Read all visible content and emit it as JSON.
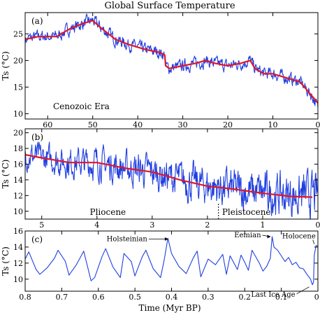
{
  "title": "Global Surface Temperature",
  "xlabel": "Time (Myr BP)",
  "colors": {
    "noisy": "#1f3fe0",
    "smooth": "#e0162b",
    "axis": "#000000"
  },
  "chart_data": [
    {
      "type": "line",
      "panel_label": "(a)",
      "era_label": "Cenozoic Era",
      "ylabel": "Ts (°C)",
      "xlim": [
        65,
        0
      ],
      "ylim": [
        9,
        29
      ],
      "xticks": [
        60,
        50,
        40,
        30,
        20,
        10,
        0
      ],
      "yticks": [
        10,
        15,
        20,
        25
      ],
      "series": [
        {
          "style": "noisy",
          "amp": 0.9,
          "x": [
            65,
            62,
            58,
            55,
            52,
            50,
            48,
            45,
            42,
            40,
            38,
            35,
            34,
            33.8,
            33,
            30,
            27,
            25,
            23,
            20,
            17,
            15,
            14,
            12,
            10,
            8,
            6,
            4,
            3,
            2,
            1,
            0
          ],
          "y": [
            24,
            24.5,
            24.5,
            26,
            27,
            27.5,
            26,
            24,
            23,
            22.5,
            22,
            21.5,
            21,
            19,
            18.5,
            19,
            19.5,
            20,
            19.5,
            19,
            19.5,
            20,
            18.5,
            17.5,
            17.5,
            17,
            16.5,
            16,
            15,
            14,
            13,
            11
          ]
        },
        {
          "style": "smooth",
          "x": [
            65,
            62,
            58,
            55,
            52,
            50,
            48,
            45,
            42,
            40,
            38,
            35,
            34,
            33.8,
            33,
            30,
            27,
            25,
            23,
            20,
            17,
            15,
            14,
            12,
            10,
            8,
            6,
            4,
            3,
            2,
            1,
            0
          ],
          "y": [
            24,
            24.5,
            24.5,
            26,
            27,
            27.5,
            26,
            24,
            23,
            22.5,
            22,
            21.5,
            21,
            19,
            18.5,
            19,
            19.5,
            20,
            19.5,
            19,
            19.5,
            20,
            18.5,
            17.5,
            17.5,
            17,
            16.5,
            16,
            15,
            14,
            13,
            12
          ]
        }
      ]
    },
    {
      "type": "line",
      "panel_label": "(b)",
      "ylabel": "Ts (°C)",
      "xlim": [
        5.3,
        0
      ],
      "ylim": [
        9,
        20.5
      ],
      "xticks": [
        5,
        4,
        3,
        2,
        1,
        0
      ],
      "yticks": [
        10,
        12,
        14,
        16,
        18,
        20
      ],
      "epochs": [
        "Pliocene",
        "Pleistocene"
      ],
      "epoch_boundary": 1.8,
      "series": [
        {
          "style": "noisy",
          "amp": 1.3,
          "ampgrow": 0.7,
          "x": [
            5.3,
            5,
            4.5,
            4,
            3.5,
            3,
            2.5,
            2,
            1.5,
            1,
            0.5,
            0
          ],
          "y": [
            17.2,
            16.8,
            16.2,
            16.2,
            15.5,
            15,
            14,
            13.2,
            12.8,
            12.3,
            12,
            12
          ]
        },
        {
          "style": "smooth",
          "x": [
            5.3,
            5,
            4.5,
            4,
            3.5,
            3,
            2.5,
            2,
            1.5,
            1,
            0.5,
            0.1
          ],
          "y": [
            17.2,
            16.8,
            16.2,
            16.2,
            15.5,
            15,
            14,
            13.2,
            12.8,
            12.3,
            11.9,
            11.8
          ]
        }
      ]
    },
    {
      "type": "line",
      "panel_label": "(c)",
      "ylabel": "Ts (°C)",
      "xlim": [
        0.8,
        0
      ],
      "ylim": [
        8.5,
        16
      ],
      "xticks": [
        0.8,
        0.7,
        0.6,
        0.5,
        0.4,
        0.3,
        0.2,
        0.1,
        0
      ],
      "xticklabels": [
        "0.8",
        "0.7",
        "0.6",
        "0.5",
        "0.4",
        "0.3",
        "0.2",
        "0.1",
        "0."
      ],
      "yticks": [
        10,
        12,
        14,
        16
      ],
      "annotations": [
        {
          "text": "Holsteinian",
          "x": 0.405,
          "y": 15.0
        },
        {
          "text": "Eemian",
          "x": 0.125,
          "y": 15.3
        },
        {
          "text": "Holocene",
          "x": 0.01,
          "y": 14.2
        },
        {
          "text": "Last Ice Age",
          "x": 0.02,
          "y": 9.3
        }
      ],
      "series": [
        {
          "style": "noisy",
          "x": [
            0.8,
            0.79,
            0.77,
            0.76,
            0.74,
            0.72,
            0.71,
            0.69,
            0.68,
            0.66,
            0.64,
            0.62,
            0.61,
            0.59,
            0.58,
            0.56,
            0.54,
            0.53,
            0.51,
            0.5,
            0.48,
            0.47,
            0.45,
            0.43,
            0.42,
            0.41,
            0.4,
            0.38,
            0.36,
            0.34,
            0.33,
            0.32,
            0.3,
            0.28,
            0.26,
            0.25,
            0.24,
            0.22,
            0.21,
            0.2,
            0.19,
            0.18,
            0.16,
            0.15,
            0.14,
            0.13,
            0.125,
            0.12,
            0.11,
            0.1,
            0.09,
            0.08,
            0.07,
            0.06,
            0.05,
            0.04,
            0.03,
            0.02,
            0.015,
            0.012,
            0.01,
            0.005,
            0
          ],
          "y": [
            12.5,
            13.4,
            11.2,
            10.6,
            11.4,
            12.6,
            13.6,
            12.2,
            10.5,
            11.8,
            13.5,
            9.8,
            10.2,
            12.8,
            13.8,
            11.5,
            10.2,
            13.2,
            12.2,
            10.4,
            12.8,
            13.6,
            11.3,
            10.2,
            12.4,
            15.1,
            13.2,
            11.6,
            10.7,
            12.7,
            13.5,
            10.3,
            12.5,
            11.8,
            13.1,
            10.6,
            12.9,
            11.2,
            13.0,
            12.1,
            11.1,
            13.6,
            12.0,
            11.0,
            11.6,
            12.6,
            15.3,
            14.0,
            13.6,
            12.9,
            12.2,
            12.7,
            11.8,
            12.1,
            11.4,
            11.3,
            10.6,
            10.0,
            9.3,
            9.6,
            13.0,
            14.2,
            14.1
          ]
        }
      ]
    }
  ]
}
